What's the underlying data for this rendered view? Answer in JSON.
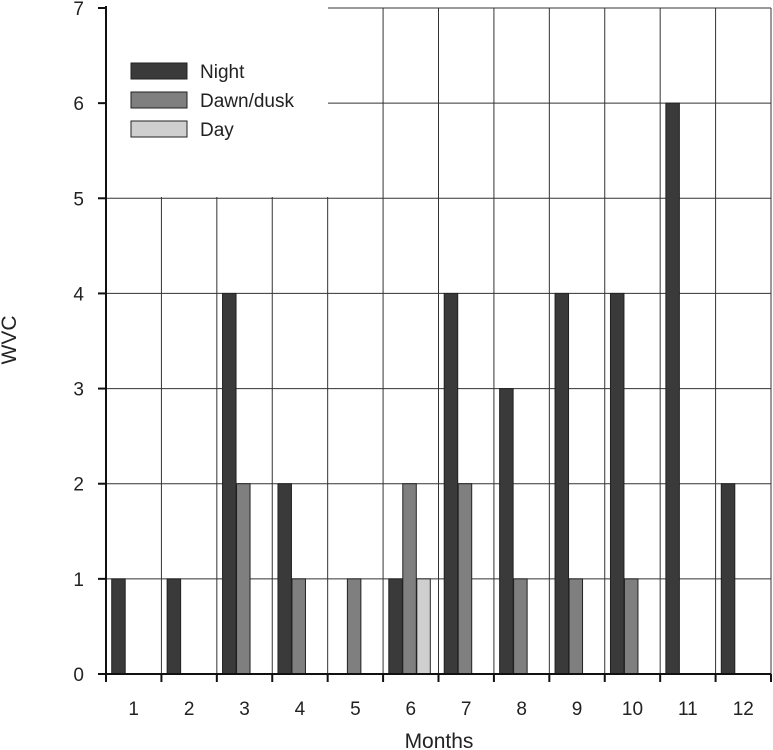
{
  "chart_data": {
    "type": "bar",
    "xlabel": "Months",
    "ylabel": "WVC",
    "ylim": [
      0,
      7
    ],
    "yticks": [
      0,
      1,
      2,
      3,
      4,
      5,
      6,
      7
    ],
    "grid": true,
    "legend_position": "top-left",
    "categories": [
      "1",
      "2",
      "3",
      "4",
      "5",
      "6",
      "7",
      "8",
      "9",
      "10",
      "11",
      "12"
    ],
    "series": [
      {
        "name": "Night",
        "color": "#3a3a3a",
        "values": [
          1,
          1,
          4,
          2,
          0,
          1,
          4,
          3,
          4,
          4,
          6,
          2
        ]
      },
      {
        "name": "Dawn/dusk",
        "color": "#7f7f7f",
        "values": [
          0,
          0,
          2,
          1,
          1,
          2,
          2,
          1,
          1,
          1,
          0,
          0
        ]
      },
      {
        "name": "Day",
        "color": "#cfcfcf",
        "values": [
          0,
          0,
          0,
          0,
          0,
          1,
          0,
          0,
          0,
          0,
          0,
          0
        ]
      }
    ]
  }
}
